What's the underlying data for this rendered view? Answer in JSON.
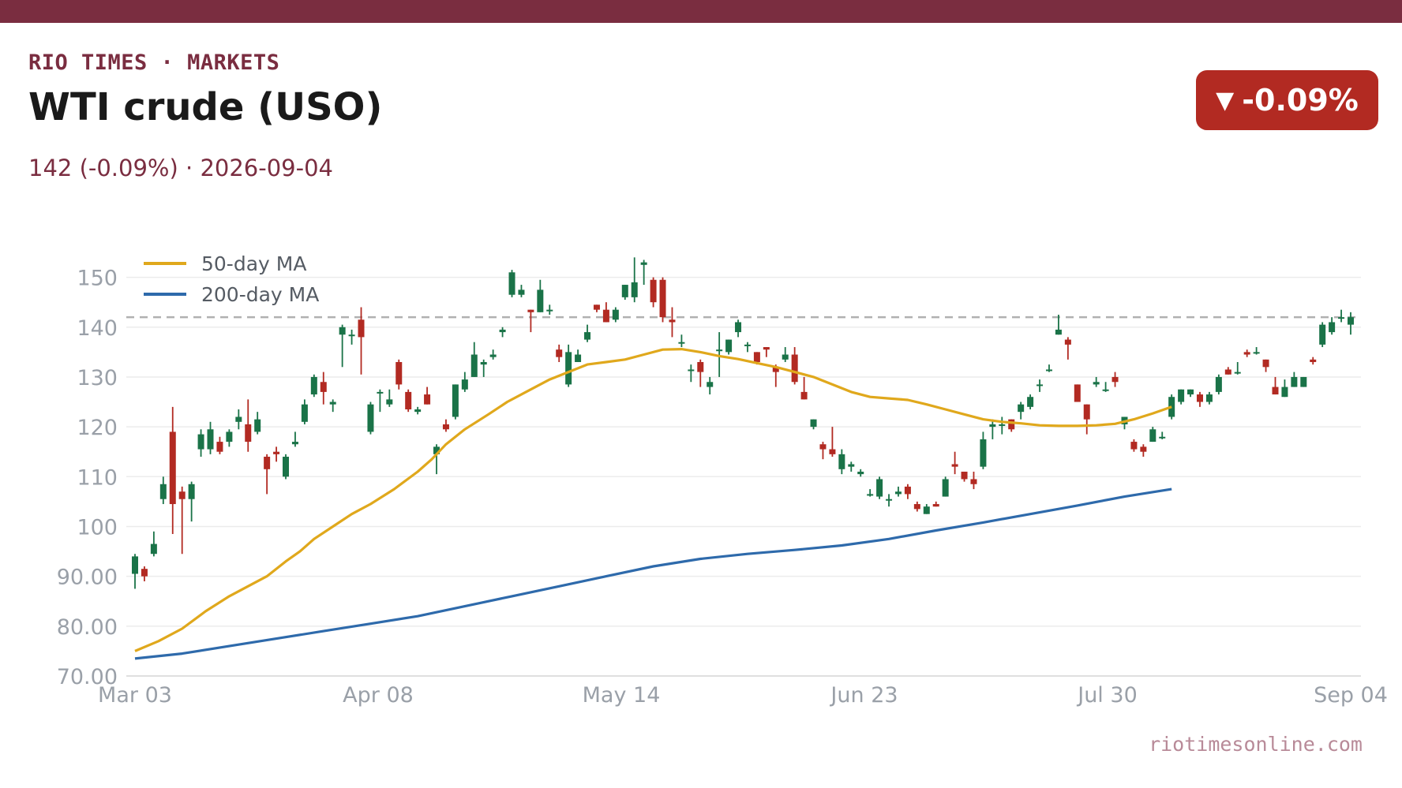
{
  "header": {
    "kicker": "RIO TIMES · MARKETS",
    "title": "WTI crude (USO)",
    "subtitle": "142 (-0.09%)  ·  2026-09-04",
    "badge_arrow": "▼",
    "badge_text": "-0.09%"
  },
  "footer": {
    "source": "riotimesonline.com"
  },
  "colors": {
    "brand": "#7a2d40",
    "up": "#1a7348",
    "down": "#b22a22",
    "ma50": "#e0a81c",
    "ma200": "#2e6aab",
    "reference_line": "#b0b0b0"
  },
  "chart_data": {
    "type": "candlestick",
    "title": "WTI crude (USO)",
    "x_ticks": [
      "Mar 03",
      "Apr 08",
      "May 14",
      "Jun 23",
      "Jul 30",
      "Sep 04"
    ],
    "y_ticks": [
      "70.00",
      "80.00",
      "90.00",
      "100",
      "110",
      "120",
      "130",
      "140",
      "150"
    ],
    "ylim": [
      70,
      155
    ],
    "grid": true,
    "legend_position": "top-left",
    "reference_line": {
      "value": 142,
      "style": "dashed"
    },
    "series": [
      {
        "name": "50-day MA",
        "type": "line",
        "color": "#e0a81c",
        "points": [
          [
            0,
            75
          ],
          [
            5,
            77
          ],
          [
            10,
            79.5
          ],
          [
            15,
            83
          ],
          [
            20,
            86
          ],
          [
            25,
            88.5
          ],
          [
            28,
            90
          ],
          [
            32,
            93
          ],
          [
            35,
            95
          ],
          [
            38,
            97.5
          ],
          [
            42,
            100
          ],
          [
            46,
            102.5
          ],
          [
            50,
            104.5
          ],
          [
            55,
            107.5
          ],
          [
            60,
            111
          ],
          [
            63,
            113.5
          ],
          [
            66,
            116.5
          ],
          [
            70,
            119.5
          ],
          [
            75,
            122.5
          ],
          [
            79,
            125
          ],
          [
            84,
            127.5
          ],
          [
            88,
            129.5
          ],
          [
            92,
            131
          ],
          [
            96,
            132.5
          ],
          [
            100,
            133
          ],
          [
            104,
            133.5
          ],
          [
            108,
            134.5
          ],
          [
            112,
            135.5
          ],
          [
            116,
            135.6
          ],
          [
            120,
            135
          ],
          [
            124,
            134.2
          ],
          [
            128,
            133.6
          ],
          [
            132,
            132.8
          ],
          [
            136,
            132
          ],
          [
            140,
            131
          ],
          [
            144,
            130
          ],
          [
            148,
            128.5
          ],
          [
            152,
            127
          ],
          [
            156,
            126
          ],
          [
            160,
            125.7
          ],
          [
            164,
            125.4
          ],
          [
            168,
            124.5
          ],
          [
            172,
            123.5
          ],
          [
            176,
            122.5
          ],
          [
            180,
            121.5
          ],
          [
            184,
            121
          ],
          [
            188,
            120.7
          ],
          [
            192,
            120.3
          ],
          [
            196,
            120.2
          ],
          [
            200,
            120.2
          ],
          [
            204,
            120.3
          ],
          [
            208,
            120.6
          ],
          [
            212,
            121.5
          ],
          [
            216,
            122.7
          ],
          [
            220,
            124
          ]
        ]
      },
      {
        "name": "200-day MA",
        "type": "line",
        "color": "#2e6aab",
        "points": [
          [
            0,
            73.5
          ],
          [
            10,
            74.5
          ],
          [
            20,
            76
          ],
          [
            30,
            77.5
          ],
          [
            40,
            79
          ],
          [
            50,
            80.5
          ],
          [
            60,
            82
          ],
          [
            70,
            84
          ],
          [
            80,
            86
          ],
          [
            90,
            88
          ],
          [
            100,
            90
          ],
          [
            110,
            92
          ],
          [
            120,
            93.5
          ],
          [
            130,
            94.5
          ],
          [
            140,
            95.3
          ],
          [
            150,
            96.2
          ],
          [
            160,
            97.5
          ],
          [
            170,
            99.2
          ],
          [
            180,
            100.8
          ],
          [
            190,
            102.5
          ],
          [
            200,
            104.2
          ],
          [
            210,
            106
          ],
          [
            220,
            107.5
          ]
        ]
      }
    ],
    "candles": [
      [
        0,
        90.5,
        94,
        87.5,
        94.5
      ],
      [
        2,
        91.5,
        90,
        89,
        92
      ],
      [
        4,
        94.5,
        96.5,
        94,
        99
      ],
      [
        6,
        105.5,
        108.5,
        104.5,
        110
      ],
      [
        8,
        119,
        104.5,
        98.5,
        124
      ],
      [
        10,
        107,
        105.5,
        94.5,
        108
      ],
      [
        12,
        105.5,
        108.5,
        101,
        109
      ],
      [
        14,
        115.5,
        118.5,
        114,
        119.5
      ],
      [
        16,
        115.5,
        119.5,
        114.5,
        121
      ],
      [
        18,
        117,
        115,
        114.5,
        118
      ],
      [
        20,
        117,
        119,
        116,
        119.5
      ],
      [
        22,
        121,
        122,
        119.5,
        123.5
      ],
      [
        24,
        120.5,
        117,
        115,
        125.5
      ],
      [
        26,
        119,
        121.5,
        118.5,
        123
      ],
      [
        28,
        114,
        111.5,
        106.5,
        114.5
      ],
      [
        30,
        115,
        114.5,
        113,
        116
      ],
      [
        32,
        110,
        114,
        109.5,
        114.5
      ],
      [
        34,
        116.5,
        117,
        116,
        119
      ],
      [
        36,
        121,
        124.5,
        120.5,
        125.5
      ],
      [
        38,
        126.5,
        130,
        126,
        130.5
      ],
      [
        40,
        129,
        127,
        124.5,
        131
      ],
      [
        42,
        124.5,
        125,
        123,
        125.5
      ],
      [
        44,
        138.5,
        140,
        132,
        140.5
      ],
      [
        46,
        138.5,
        138.5,
        136.5,
        139.5
      ],
      [
        48,
        141.5,
        138,
        130.5,
        144
      ],
      [
        50,
        119,
        124.5,
        118.5,
        125
      ],
      [
        52,
        127,
        127,
        123,
        127.5
      ],
      [
        54,
        124.5,
        125.5,
        124,
        127.5
      ],
      [
        56,
        133,
        128.5,
        127.5,
        133.5
      ],
      [
        58,
        127,
        123.5,
        123,
        127.5
      ],
      [
        60,
        123,
        123.5,
        122.5,
        124
      ],
      [
        62,
        126.5,
        124.5,
        124.5,
        128
      ],
      [
        64,
        114.5,
        116,
        110.5,
        116.5
      ],
      [
        66,
        120.5,
        119.5,
        119,
        121.5
      ],
      [
        68,
        122,
        128.5,
        121.5,
        128.5
      ],
      [
        70,
        127.5,
        129.5,
        127,
        131
      ],
      [
        72,
        130,
        134.5,
        130,
        137
      ],
      [
        74,
        132.5,
        133,
        130,
        133.5
      ],
      [
        76,
        134,
        134.5,
        133.5,
        135.5
      ],
      [
        78,
        139,
        139.5,
        138,
        140
      ],
      [
        80,
        146.5,
        151,
        146,
        151.5
      ],
      [
        82,
        146.5,
        147.5,
        146,
        148.5
      ],
      [
        84,
        143.5,
        143,
        139,
        143.5
      ],
      [
        86,
        143,
        147.5,
        143,
        149.5
      ],
      [
        88,
        143.5,
        143.5,
        142.5,
        144.5
      ],
      [
        90,
        135.5,
        134,
        133,
        136.5
      ],
      [
        92,
        128.5,
        135,
        128,
        136.5
      ],
      [
        94,
        133,
        134.5,
        133,
        135.5
      ],
      [
        96,
        137.5,
        139,
        137,
        140.5
      ],
      [
        98,
        144.5,
        143.5,
        143,
        144.5
      ],
      [
        100,
        143.5,
        141,
        141,
        145
      ],
      [
        102,
        141.5,
        143.5,
        141,
        144
      ],
      [
        104,
        146,
        148.5,
        145.5,
        148.5
      ],
      [
        106,
        146,
        149,
        145,
        154
      ],
      [
        108,
        152.5,
        153,
        148.5,
        153.5
      ],
      [
        110,
        149.5,
        145,
        144,
        150
      ],
      [
        112,
        149.5,
        142,
        141,
        150
      ],
      [
        114,
        141.5,
        141,
        138,
        144
      ],
      [
        116,
        137,
        137,
        136,
        138.5
      ],
      [
        118,
        131.5,
        131.5,
        129,
        132.5
      ],
      [
        120,
        133,
        131,
        128,
        133.5
      ],
      [
        122,
        128,
        129,
        126.5,
        130
      ],
      [
        124,
        135.5,
        135.5,
        130,
        139
      ],
      [
        126,
        135,
        137.5,
        134.5,
        137.5
      ],
      [
        128,
        139,
        141,
        138,
        141.5
      ],
      [
        130,
        136.5,
        136.5,
        135,
        137
      ],
      [
        132,
        135,
        133,
        132.5,
        135
      ],
      [
        134,
        136,
        135.5,
        134,
        136
      ],
      [
        136,
        132,
        131,
        128,
        132.5
      ],
      [
        138,
        133.5,
        134.5,
        133,
        136
      ],
      [
        140,
        134.5,
        129,
        128.5,
        136
      ],
      [
        142,
        127,
        125.5,
        125.5,
        130
      ],
      [
        144,
        120,
        121.5,
        119.5,
        121.5
      ],
      [
        146,
        116.5,
        115.5,
        113.5,
        117
      ],
      [
        148,
        115.5,
        114.5,
        114,
        120
      ],
      [
        150,
        111.5,
        114.5,
        110.5,
        115.5
      ],
      [
        152,
        112,
        112.5,
        111,
        113
      ],
      [
        154,
        110.5,
        111,
        110,
        111.5
      ],
      [
        156,
        106.5,
        106.5,
        106,
        107.5
      ],
      [
        158,
        106,
        109.5,
        105.5,
        110
      ],
      [
        160,
        105.5,
        105.5,
        104,
        106.5
      ],
      [
        162,
        106.5,
        107,
        106,
        108
      ],
      [
        164,
        108,
        106.5,
        105.5,
        108.5
      ],
      [
        166,
        104.5,
        103.5,
        103,
        105
      ],
      [
        168,
        102.5,
        104,
        102.5,
        104.5
      ],
      [
        170,
        104.5,
        104,
        104,
        105
      ],
      [
        172,
        106,
        109.5,
        106,
        110
      ],
      [
        174,
        112.5,
        112,
        110.5,
        115
      ],
      [
        176,
        111,
        109.5,
        109,
        111
      ],
      [
        178,
        109.5,
        108.5,
        107.5,
        111
      ],
      [
        180,
        112,
        117.5,
        111.5,
        119
      ],
      [
        182,
        120,
        120.5,
        117.5,
        121.5
      ],
      [
        184,
        120.5,
        120.5,
        118.5,
        122
      ],
      [
        186,
        121.5,
        119.5,
        119,
        121.5
      ],
      [
        188,
        123,
        124.5,
        121.5,
        125
      ],
      [
        190,
        124,
        126,
        123.5,
        126.5
      ],
      [
        192,
        128.5,
        128.5,
        127,
        129.5
      ],
      [
        194,
        131.5,
        131.5,
        131,
        132.5
      ],
      [
        196,
        138.5,
        139.5,
        138.5,
        142.5
      ],
      [
        198,
        137.5,
        136.5,
        133.5,
        138
      ],
      [
        200,
        128.5,
        125,
        125,
        128.5
      ],
      [
        202,
        124.5,
        121.5,
        118.5,
        124.5
      ],
      [
        204,
        128.5,
        129,
        128,
        130
      ],
      [
        206,
        127.5,
        127.5,
        127,
        129
      ],
      [
        208,
        130,
        129,
        128,
        131
      ],
      [
        210,
        120.5,
        122,
        119.5,
        122
      ],
      [
        212,
        117,
        115.5,
        115,
        117.5
      ],
      [
        214,
        116,
        115,
        114,
        116.5
      ],
      [
        216,
        117,
        119.5,
        117,
        120
      ],
      [
        218,
        118,
        118,
        117.5,
        119
      ],
      [
        220,
        122,
        126,
        121.5,
        126.5
      ],
      [
        222,
        125,
        127.5,
        124.5,
        127.5
      ],
      [
        224,
        126.5,
        127.5,
        126,
        127.5
      ],
      [
        226,
        126.5,
        125,
        124,
        127
      ],
      [
        228,
        125,
        126.5,
        124.5,
        127
      ],
      [
        230,
        127,
        130,
        126.5,
        130.5
      ],
      [
        232,
        131.5,
        130.5,
        130.5,
        132
      ],
      [
        234,
        131,
        131,
        130.5,
        133
      ],
      [
        236,
        135,
        134.5,
        134,
        135.5
      ],
      [
        238,
        135,
        135,
        134.5,
        136
      ],
      [
        240,
        133.5,
        132,
        131,
        133.5
      ],
      [
        242,
        128,
        126.5,
        126.5,
        130
      ],
      [
        244,
        126,
        128,
        126,
        129.5
      ],
      [
        246,
        128,
        130,
        128,
        131
      ],
      [
        248,
        128,
        130,
        128,
        130
      ],
      [
        250,
        133.5,
        133,
        132.5,
        134
      ],
      [
        252,
        136.5,
        140.5,
        136,
        141
      ],
      [
        254,
        139,
        141,
        138.5,
        142
      ],
      [
        256,
        142,
        142,
        141,
        143.5
      ],
      [
        258,
        140.5,
        142,
        138.5,
        143
      ]
    ]
  }
}
